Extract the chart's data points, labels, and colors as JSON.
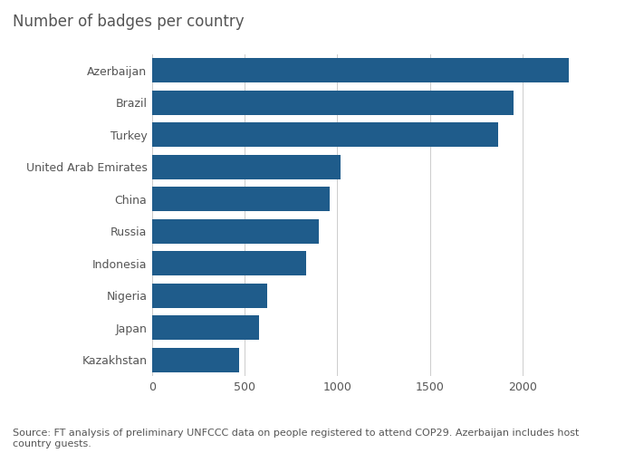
{
  "title": "Number of badges per country",
  "categories": [
    "Kazakhstan",
    "Japan",
    "Nigeria",
    "Indonesia",
    "Russia",
    "China",
    "United Arab Emirates",
    "Turkey",
    "Brazil",
    "Azerbaijan"
  ],
  "values": [
    470,
    575,
    620,
    830,
    900,
    960,
    1020,
    1870,
    1950,
    2250
  ],
  "bar_color": "#1f5c8b",
  "background_color": "#ffffff",
  "xlim": [
    0,
    2500
  ],
  "xticks": [
    0,
    500,
    1000,
    1500,
    2000
  ],
  "source_text": "Source: FT analysis of preliminary UNFCCC data on people registered to attend COP29. Azerbaijan includes host\ncountry guests.",
  "title_fontsize": 12,
  "tick_fontsize": 9,
  "source_fontsize": 8,
  "bar_height": 0.75,
  "title_color": "#555555",
  "tick_color": "#555555",
  "source_color": "#555555",
  "grid_color": "#cccccc"
}
